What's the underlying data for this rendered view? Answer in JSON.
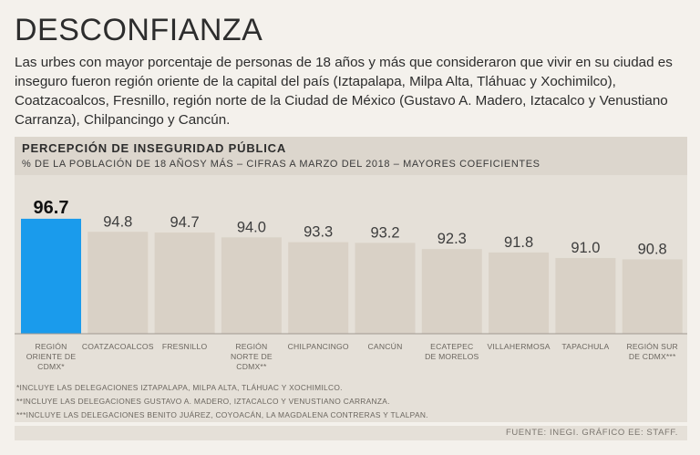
{
  "header": {
    "title": "DESCONFIANZA",
    "intro": "Las urbes con mayor porcentaje de personas de 18 años y más que consideraron que vivir en su ciudad es inseguro fueron región oriente de la capital del país (Iztapalapa, Milpa Alta, Tláhuac y Xochimilco), Coatzacoalcos, Fresnillo, región norte de la Ciudad de México (Gustavo A. Madero, Iztacalco y Venustiano Carranza), Chilpancingo y Cancún."
  },
  "chart_data": {
    "type": "bar",
    "title": "PERCEPCIÓN DE INSEGURIDAD PÚBLICA",
    "subtitle": "% DE LA POBLACIÓN DE 18 AÑOSY MÁS – CIFRAS A MARZO DEL 2018 – MAYORES COEFICIENTES",
    "categories": [
      [
        "REGIÓN",
        "ORIENTE DE",
        "CDMX*"
      ],
      [
        "COATZACOALCOS"
      ],
      [
        "FRESNILLO"
      ],
      [
        "REGIÓN",
        "NORTE DE",
        "CDMX**"
      ],
      [
        "CHILPANCINGO"
      ],
      [
        "CANCÚN"
      ],
      [
        "ECATEPEC",
        "DE MORELOS"
      ],
      [
        "VILLAHERMOSA"
      ],
      [
        "TAPACHULA"
      ],
      [
        "REGIÓN SUR",
        "DE CDMX***"
      ]
    ],
    "values": [
      96.7,
      94.8,
      94.7,
      94.0,
      93.3,
      93.2,
      92.3,
      91.8,
      91.0,
      90.8
    ],
    "value_labels": [
      "96.7",
      "94.8",
      "94.7",
      "94.0",
      "93.3",
      "93.2",
      "92.3",
      "91.8",
      "91.0",
      "90.8"
    ],
    "highlight_index": 0,
    "ylim": [
      80,
      100
    ],
    "xlabel": "",
    "ylabel": "",
    "grid": false
  },
  "footnotes": [
    "*INCLUYE LAS DELEGACIONES IZTAPALAPA, MILPA ALTA, TLÁHUAC Y XOCHIMILCO.",
    "**INCLUYE LAS DELEGACIONES GUSTAVO A. MADERO, IZTACALCO Y VENUSTIANO CARRANZA.",
    "***INCLUYE LAS DELEGACIONES BENITO JUÁREZ, COYOACÁN, LA MAGDALENA CONTRERAS Y TLALPAN."
  ],
  "source": "FUENTE: INEGI. GRÁFICO EE: STAFF.",
  "colors": {
    "highlight_bar": "#1a9bec",
    "bar": "#d9d1c6",
    "baseline": "#9e9890",
    "value_text": "#3d3d3d",
    "highlight_value_text": "#111111",
    "category_text": "#6b665f"
  }
}
